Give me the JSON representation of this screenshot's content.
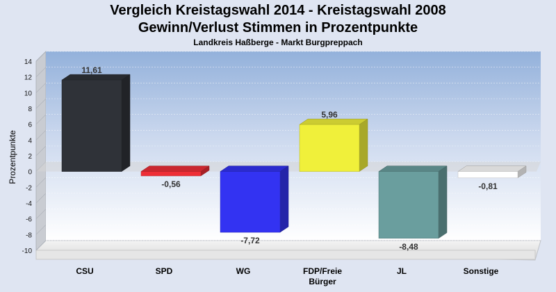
{
  "chart_data": {
    "type": "bar",
    "title": "Vergleich Kreistagswahl 2014 - Kreistagswahl 2008",
    "subtitle_line": "Gewinn/Verlust Stimmen in Prozentpunkte",
    "caption": "Landkreis Haßberge - Markt Burgpreppach",
    "ylabel": "Prozentpunkte",
    "xlabel": "",
    "ylim": [
      -10,
      14
    ],
    "yticks": [
      "14",
      "12",
      "10",
      "8",
      "6",
      "4",
      "2",
      "0",
      "-2",
      "-4",
      "-6",
      "-8",
      "-10"
    ],
    "grid": true,
    "categories": [
      {
        "line1": "CSU",
        "line2": ""
      },
      {
        "line1": "SPD",
        "line2": ""
      },
      {
        "line1": "WG",
        "line2": ""
      },
      {
        "line1": "FDP/Freie",
        "line2": "Bürger"
      },
      {
        "line1": "JL",
        "line2": ""
      },
      {
        "line1": "Sonstige",
        "line2": ""
      }
    ],
    "values": [
      11.61,
      -0.56,
      -7.72,
      5.96,
      -8.48,
      -0.81
    ],
    "value_labels": [
      "11,61",
      "-0,56",
      "-7,72",
      "5,96",
      "-8,48",
      "-0,81"
    ],
    "colors": [
      "#2f3238",
      "#ee2e36",
      "#3333f2",
      "#f0f03a",
      "#6a9e9e",
      "#ffffff"
    ]
  }
}
